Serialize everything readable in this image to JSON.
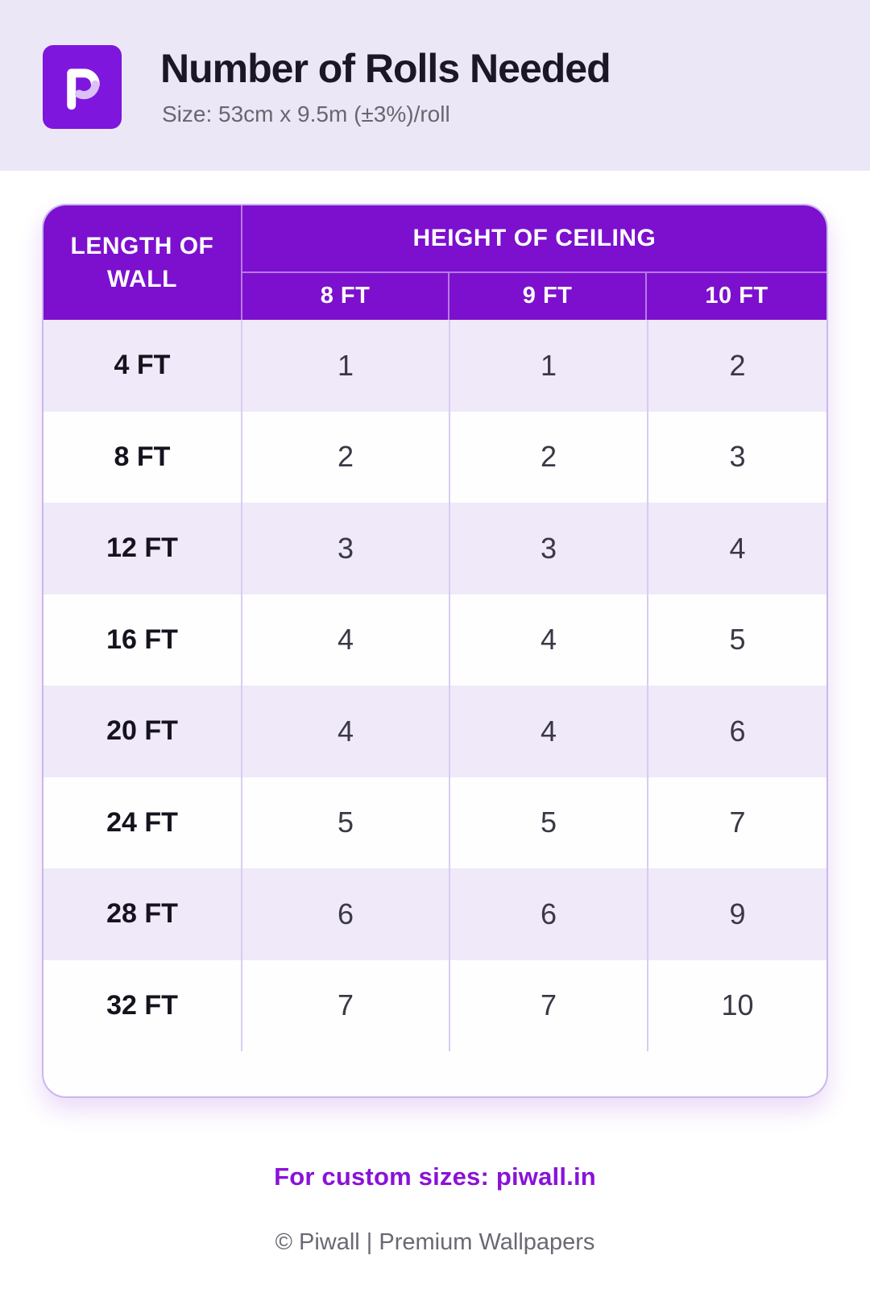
{
  "header": {
    "title": "Number of Rolls Needed",
    "subtitle": "Size: 53cm x 9.5m (±3%)/roll",
    "logo": "piwall-p-logo"
  },
  "chart_data": {
    "type": "table",
    "title": "Number of Rolls Needed",
    "subtitle": "Size: 53cm x 9.5m (±3%)/roll",
    "corner_header": "LENGTH OF WALL",
    "column_group_header": "HEIGHT OF CEILING",
    "columns": [
      "8 FT",
      "9 FT",
      "10 FT"
    ],
    "rows": [
      {
        "label": "4 FT",
        "values": [
          "1",
          "1",
          "2"
        ]
      },
      {
        "label": "8 FT",
        "values": [
          "2",
          "2",
          "3"
        ]
      },
      {
        "label": "12 FT",
        "values": [
          "3",
          "3",
          "4"
        ]
      },
      {
        "label": "16 FT",
        "values": [
          "4",
          "4",
          "5"
        ]
      },
      {
        "label": "20 FT",
        "values": [
          "4",
          "4",
          "6"
        ]
      },
      {
        "label": "24 FT",
        "values": [
          "5",
          "5",
          "7"
        ]
      },
      {
        "label": "28 FT",
        "values": [
          "6",
          "6",
          "9"
        ]
      },
      {
        "label": "32 FT",
        "values": [
          "7",
          "7",
          "10"
        ]
      }
    ]
  },
  "footer": {
    "custom_sizes_text": "For custom sizes: piwall.in",
    "copyright": "© Piwall | Premium Wallpapers"
  },
  "colors": {
    "top_band": "#ece7f6",
    "logo_purple": "#7e16dd",
    "logo_accent": "#dcc0f8",
    "table_header_purple": "#7c10ce",
    "row_alt_lavender": "#efe9f9",
    "row_white": "#fefeff",
    "divider": "#d9ccf0",
    "card_border": "#cbb7ee",
    "title_text": "#1b1727",
    "subtitle_text": "#68666f",
    "value_text": "#3b3846",
    "link_purple": "#8a12d8",
    "copyright_text": "#696974"
  }
}
